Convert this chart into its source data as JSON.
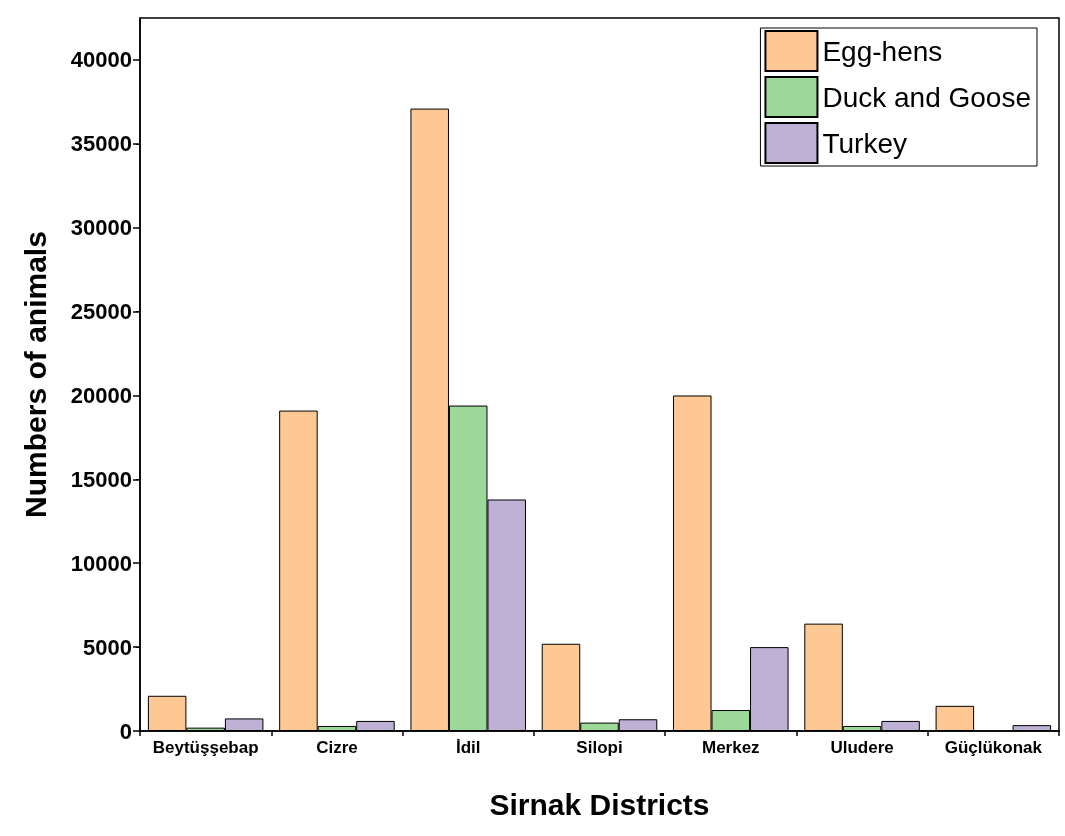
{
  "chart_data": {
    "type": "bar",
    "xlabel": "Sirnak Districts",
    "ylabel": "Numbers of animals",
    "categories": [
      "Beytüşşebap",
      "Cizre",
      "İdil",
      "Silopi",
      "Merkez",
      "Uludere",
      "Güçlükonak"
    ],
    "series": [
      {
        "name": "Egg-hens",
        "color": "#fec895",
        "values": [
          2100,
          19100,
          37100,
          5200,
          20000,
          6400,
          1500
        ]
      },
      {
        "name": "Duck and Goose",
        "color": "#9dd89b",
        "values": [
          200,
          300,
          19400,
          500,
          1250,
          300,
          null
        ]
      },
      {
        "name": "Turkey",
        "color": "#bfb0d6",
        "values": [
          750,
          600,
          13800,
          700,
          5000,
          600,
          350
        ]
      }
    ],
    "ylim": [
      0,
      42500
    ],
    "yticks": [
      0,
      5000,
      10000,
      15000,
      20000,
      25000,
      30000,
      35000,
      40000
    ],
    "grid": false,
    "legend": "top right"
  }
}
